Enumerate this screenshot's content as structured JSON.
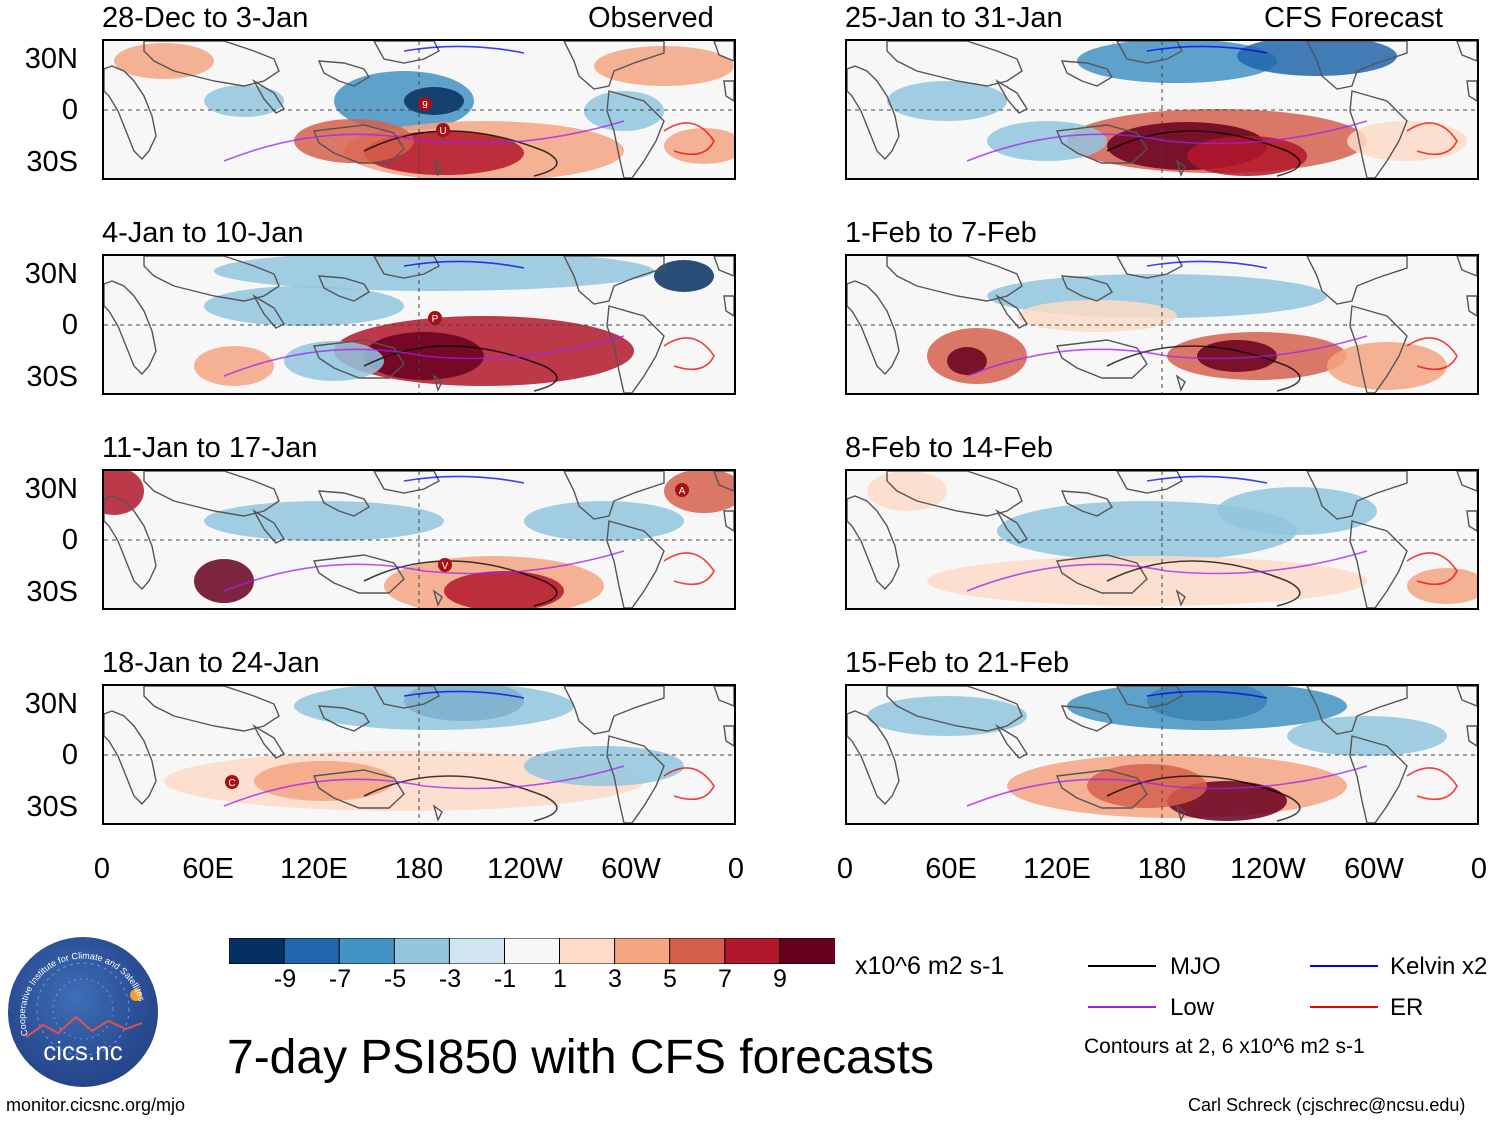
{
  "panels": [
    {
      "title": "28-Dec to 3-Jan",
      "label": "Observed",
      "storms": [
        "9",
        "U"
      ]
    },
    {
      "title": "4-Jan to 10-Jan",
      "label": "",
      "storms": [
        "P"
      ]
    },
    {
      "title": "11-Jan to 17-Jan",
      "label": "",
      "storms": [
        "A",
        "V"
      ]
    },
    {
      "title": "18-Jan to 24-Jan",
      "label": "",
      "storms": [
        "C"
      ]
    },
    {
      "title": "25-Jan to 31-Jan",
      "label": "CFS Forecast",
      "storms": []
    },
    {
      "title": "1-Feb to 7-Feb",
      "label": "",
      "storms": []
    },
    {
      "title": "8-Feb to 14-Feb",
      "label": "",
      "storms": []
    },
    {
      "title": "15-Feb to 21-Feb",
      "label": "",
      "storms": []
    }
  ],
  "y_axis": [
    "30N",
    "0",
    "30S"
  ],
  "x_axis": [
    "0",
    "60E",
    "120E",
    "180",
    "120W",
    "60W",
    "0"
  ],
  "colorbar": {
    "labels": [
      "-9",
      "-7",
      "-5",
      "-3",
      "-1",
      "1",
      "3",
      "5",
      "7",
      "9"
    ],
    "colors": [
      "#053061",
      "#2166ac",
      "#4393c3",
      "#92c5de",
      "#d1e5f0",
      "#f7f7f7",
      "#fddbc7",
      "#f4a582",
      "#d6604d",
      "#b2182b",
      "#67001f"
    ],
    "units": "x10^6 m2 s-1"
  },
  "legend": {
    "items": [
      {
        "label": "MJO",
        "color": "#000000"
      },
      {
        "label": "Kelvin x2",
        "color": "#0000ee"
      },
      {
        "label": "Low",
        "color": "#a020f0"
      },
      {
        "label": "ER",
        "color": "#ee0000"
      }
    ],
    "contour_note": "Contours at 2, 6 x10^6 m2 s-1"
  },
  "title": "7-day PSI850 with CFS forecasts",
  "logo_text": "cics.nc",
  "logo_ring_text": "Cooperative Institute for Climate and Satellites",
  "footer_left": "monitor.cicsnc.org/mjo",
  "footer_right": "Carl Schreck (cjschrec@ncsu.edu)"
}
